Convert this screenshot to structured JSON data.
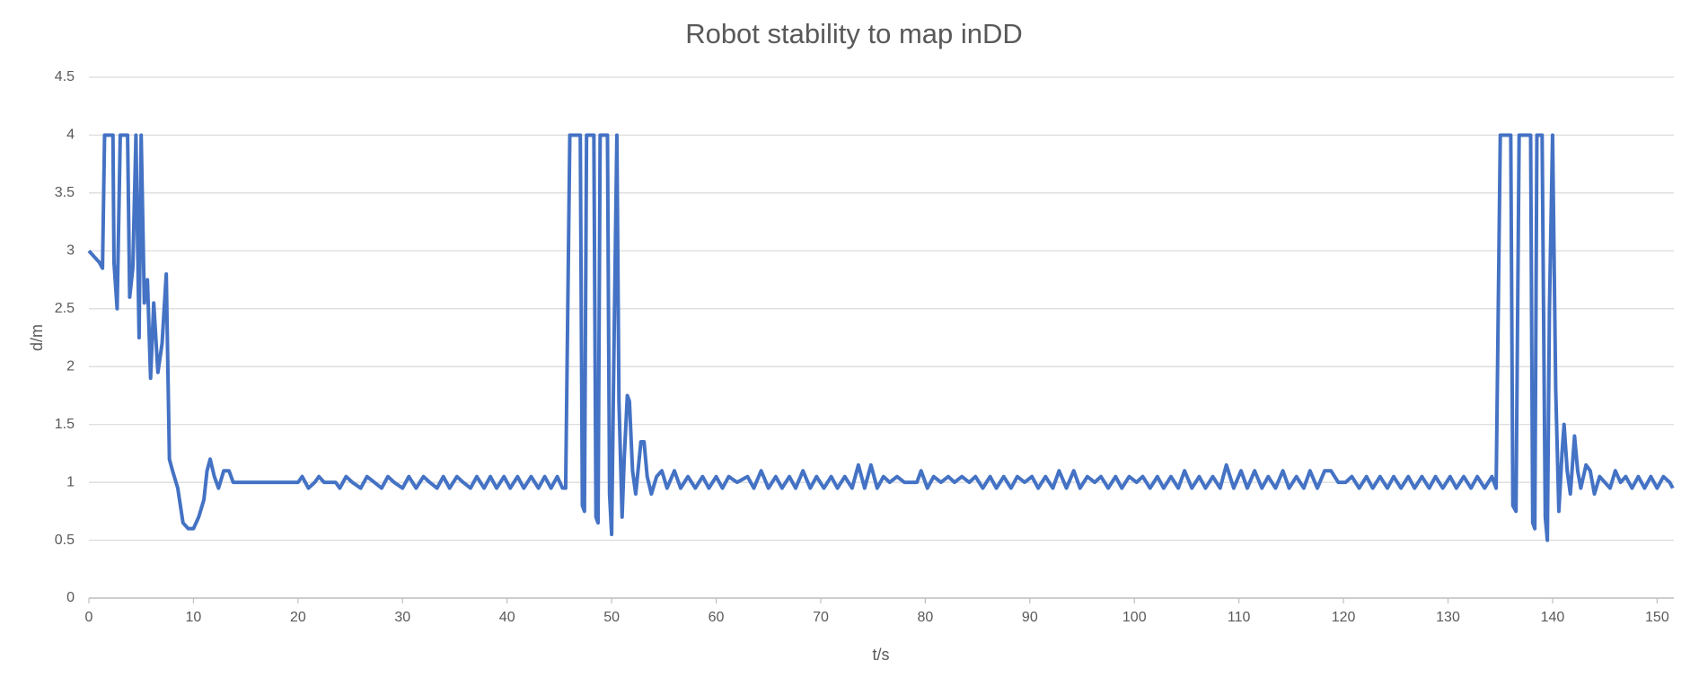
{
  "chart_data": {
    "type": "line",
    "title": "Robot stability to map inDD",
    "x_label": "t/s",
    "y_label": "d/m",
    "xlim": [
      0,
      151.6
    ],
    "ylim": [
      0,
      4.5
    ],
    "xticks": [
      0,
      10,
      20,
      30,
      40,
      50,
      60,
      70,
      80,
      90,
      100,
      110,
      120,
      130,
      140,
      150
    ],
    "yticks": [
      0,
      0.5,
      1,
      1.5,
      2,
      2.5,
      3,
      3.5,
      4,
      4.5
    ],
    "grid": true,
    "x": [
      0,
      0.5,
      1,
      1.3,
      1.5,
      2.3,
      2.4,
      2.7,
      3,
      3.7,
      3.9,
      4.2,
      4.5,
      4.8,
      5,
      5.3,
      5.6,
      5.9,
      6.2,
      6.6,
      7,
      7.4,
      7.7,
      8,
      8.5,
      9,
      9.5,
      10,
      10.5,
      11,
      11.3,
      11.6,
      12,
      12.4,
      12.9,
      13.4,
      13.8,
      20,
      20.4,
      21,
      21.6,
      22,
      22.5,
      23.6,
      24,
      24.6,
      25.2,
      26,
      26.6,
      27.3,
      28,
      28.6,
      29.2,
      30,
      30.6,
      31.3,
      32,
      32.6,
      33.3,
      33.9,
      34.5,
      35.2,
      35.8,
      36.5,
      37.1,
      37.8,
      38.4,
      39,
      39.7,
      40.3,
      41,
      41.6,
      42.3,
      43,
      43.6,
      44.2,
      44.8,
      45.3,
      45.6,
      46,
      47,
      47.2,
      47.4,
      47.6,
      48.3,
      48.5,
      48.7,
      48.9,
      49.6,
      49.8,
      50,
      50.2,
      50.5,
      50.7,
      51,
      51.2,
      51.5,
      51.7,
      52,
      52.3,
      52.8,
      53.1,
      53.4,
      53.8,
      54.3,
      54.8,
      55.3,
      56,
      56.6,
      57.3,
      58,
      58.7,
      59.3,
      60,
      60.6,
      61.2,
      62,
      63,
      63.6,
      64.3,
      65,
      65.7,
      66.3,
      67,
      67.6,
      68.3,
      69,
      69.6,
      70.3,
      71,
      71.6,
      72.3,
      73,
      73.6,
      74.2,
      74.8,
      75.4,
      76,
      76.6,
      77.3,
      78,
      79.2,
      79.6,
      80.2,
      80.8,
      81.5,
      82.2,
      82.8,
      83.5,
      84.2,
      84.8,
      85.5,
      86.2,
      86.8,
      87.5,
      88.2,
      88.8,
      89.5,
      90.2,
      90.8,
      91.5,
      92.2,
      92.8,
      93.5,
      94.2,
      94.8,
      95.5,
      96.2,
      96.8,
      97.5,
      98.2,
      98.8,
      99.5,
      100.2,
      100.8,
      101.5,
      102.2,
      102.8,
      103.5,
      104.2,
      104.8,
      105.5,
      106.2,
      106.8,
      107.5,
      108.2,
      108.8,
      109.5,
      110.2,
      110.8,
      111.5,
      112.2,
      112.8,
      113.5,
      114.2,
      114.8,
      115.5,
      116.2,
      116.8,
      117.5,
      118.2,
      118.8,
      119.5,
      120.2,
      120.8,
      121.5,
      122.2,
      122.8,
      123.5,
      124.2,
      124.8,
      125.5,
      126.2,
      126.8,
      127.5,
      128.2,
      128.8,
      129.5,
      130.2,
      130.8,
      131.5,
      132.2,
      132.8,
      133.5,
      134.2,
      134.6,
      135,
      136,
      136.2,
      136.5,
      136.8,
      137.9,
      138.1,
      138.3,
      138.5,
      139,
      139.3,
      139.5,
      139.7,
      140,
      140.3,
      140.6,
      140.9,
      141.1,
      141.4,
      141.7,
      142.1,
      142.4,
      142.7,
      143.2,
      143.6,
      144,
      144.5,
      145,
      145.5,
      146,
      146.5,
      147,
      147.6,
      148.2,
      148.8,
      149.4,
      150,
      150.6,
      151.2,
      151.5
    ],
    "series": [
      {
        "name": "d/m",
        "color": "#4472c4",
        "values": [
          3,
          2.95,
          2.9,
          2.85,
          4,
          4,
          2.9,
          2.5,
          4,
          4,
          2.6,
          2.85,
          4,
          2.25,
          4,
          2.55,
          2.75,
          1.9,
          2.55,
          1.95,
          2.2,
          2.8,
          1.2,
          1.1,
          0.95,
          0.65,
          0.6,
          0.6,
          0.7,
          0.85,
          1.1,
          1.2,
          1.05,
          0.95,
          1.1,
          1.1,
          1,
          1,
          1.05,
          0.95,
          1,
          1.05,
          1,
          1,
          0.95,
          1.05,
          1,
          0.95,
          1.05,
          1,
          0.95,
          1.05,
          1,
          0.95,
          1.05,
          0.95,
          1.05,
          1,
          0.95,
          1.05,
          0.95,
          1.05,
          1,
          0.95,
          1.05,
          0.95,
          1.05,
          0.95,
          1.05,
          0.95,
          1.05,
          0.95,
          1.05,
          0.95,
          1.05,
          0.95,
          1.05,
          0.95,
          0.95,
          4,
          4,
          0.8,
          0.75,
          4,
          4,
          0.7,
          0.65,
          4,
          4,
          0.9,
          0.55,
          2,
          4,
          1.7,
          0.7,
          1.2,
          1.75,
          1.7,
          1.1,
          0.9,
          1.35,
          1.35,
          1.05,
          0.9,
          1.05,
          1.1,
          0.95,
          1.1,
          0.95,
          1.05,
          0.95,
          1.05,
          0.95,
          1.05,
          0.95,
          1.05,
          1,
          1.05,
          0.95,
          1.1,
          0.95,
          1.05,
          0.95,
          1.05,
          0.95,
          1.1,
          0.95,
          1.05,
          0.95,
          1.05,
          0.95,
          1.05,
          0.95,
          1.15,
          0.95,
          1.15,
          0.95,
          1.05,
          1,
          1.05,
          1,
          1,
          1.1,
          0.95,
          1.05,
          1,
          1.05,
          1,
          1.05,
          1,
          1.05,
          0.95,
          1.05,
          0.95,
          1.05,
          0.95,
          1.05,
          1,
          1.05,
          0.95,
          1.05,
          0.95,
          1.1,
          0.95,
          1.1,
          0.95,
          1.05,
          1,
          1.05,
          0.95,
          1.05,
          0.95,
          1.05,
          1,
          1.05,
          0.95,
          1.05,
          0.95,
          1.05,
          0.95,
          1.1,
          0.95,
          1.05,
          0.95,
          1.05,
          0.95,
          1.15,
          0.95,
          1.1,
          0.95,
          1.1,
          0.95,
          1.05,
          0.95,
          1.1,
          0.95,
          1.05,
          0.95,
          1.1,
          0.95,
          1.1,
          1.1,
          1,
          1,
          1.05,
          0.95,
          1.05,
          0.95,
          1.05,
          0.95,
          1.05,
          0.95,
          1.05,
          0.95,
          1.05,
          0.95,
          1.05,
          0.95,
          1.05,
          0.95,
          1.05,
          0.95,
          1.05,
          0.95,
          1.05,
          0.95,
          4,
          4,
          0.8,
          0.75,
          4,
          4,
          0.65,
          0.6,
          4,
          4,
          0.7,
          0.5,
          2.5,
          4,
          1.8,
          0.75,
          1.25,
          1.5,
          1.1,
          0.9,
          1.4,
          1.1,
          0.95,
          1.15,
          1.1,
          0.9,
          1.05,
          1,
          0.95,
          1.1,
          1,
          1.05,
          0.95,
          1.05,
          0.95,
          1.05,
          0.95,
          1.05,
          1,
          0.95
        ]
      }
    ]
  }
}
